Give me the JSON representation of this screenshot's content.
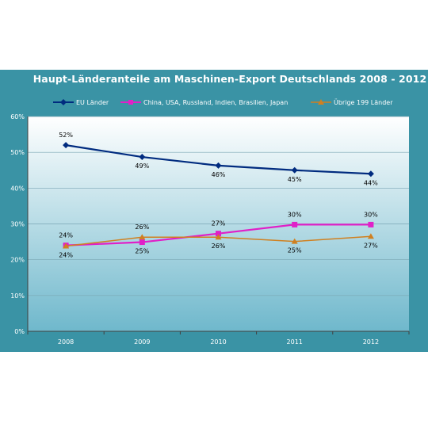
{
  "chart_data": {
    "type": "line",
    "title": "Haupt-Länderanteile am Maschinen-Export Deutschlands 2008 - 2012",
    "categories": [
      "2008",
      "2009",
      "2010",
      "2011",
      "2012"
    ],
    "ylim": [
      0,
      60
    ],
    "yticks": [
      "0%",
      "10%",
      "20%",
      "30%",
      "40%",
      "50%",
      "60%"
    ],
    "grid": true,
    "legend_position": "top",
    "series": [
      {
        "name": "EU Länder",
        "values": [
          52,
          48.7,
          46.3,
          45,
          44
        ],
        "labels": [
          "52%",
          "49%",
          "46%",
          "45%",
          "44%"
        ],
        "color": "#002b7f",
        "marker": "diamond"
      },
      {
        "name": "China, USA, Russland, Indien, Brasilien, Japan",
        "values": [
          24,
          24.9,
          27.3,
          29.8,
          29.8
        ],
        "labels": [
          "24%",
          "25%",
          "27%",
          "30%",
          "30%"
        ],
        "color": "#e020c8",
        "marker": "square"
      },
      {
        "name": "Übrige 199 Länder",
        "values": [
          23.8,
          26.3,
          26.3,
          25.1,
          26.5
        ],
        "labels": [
          "24%",
          "26%",
          "26%",
          "25%",
          "27%"
        ],
        "color": "#d08020",
        "marker": "triangle"
      }
    ]
  }
}
